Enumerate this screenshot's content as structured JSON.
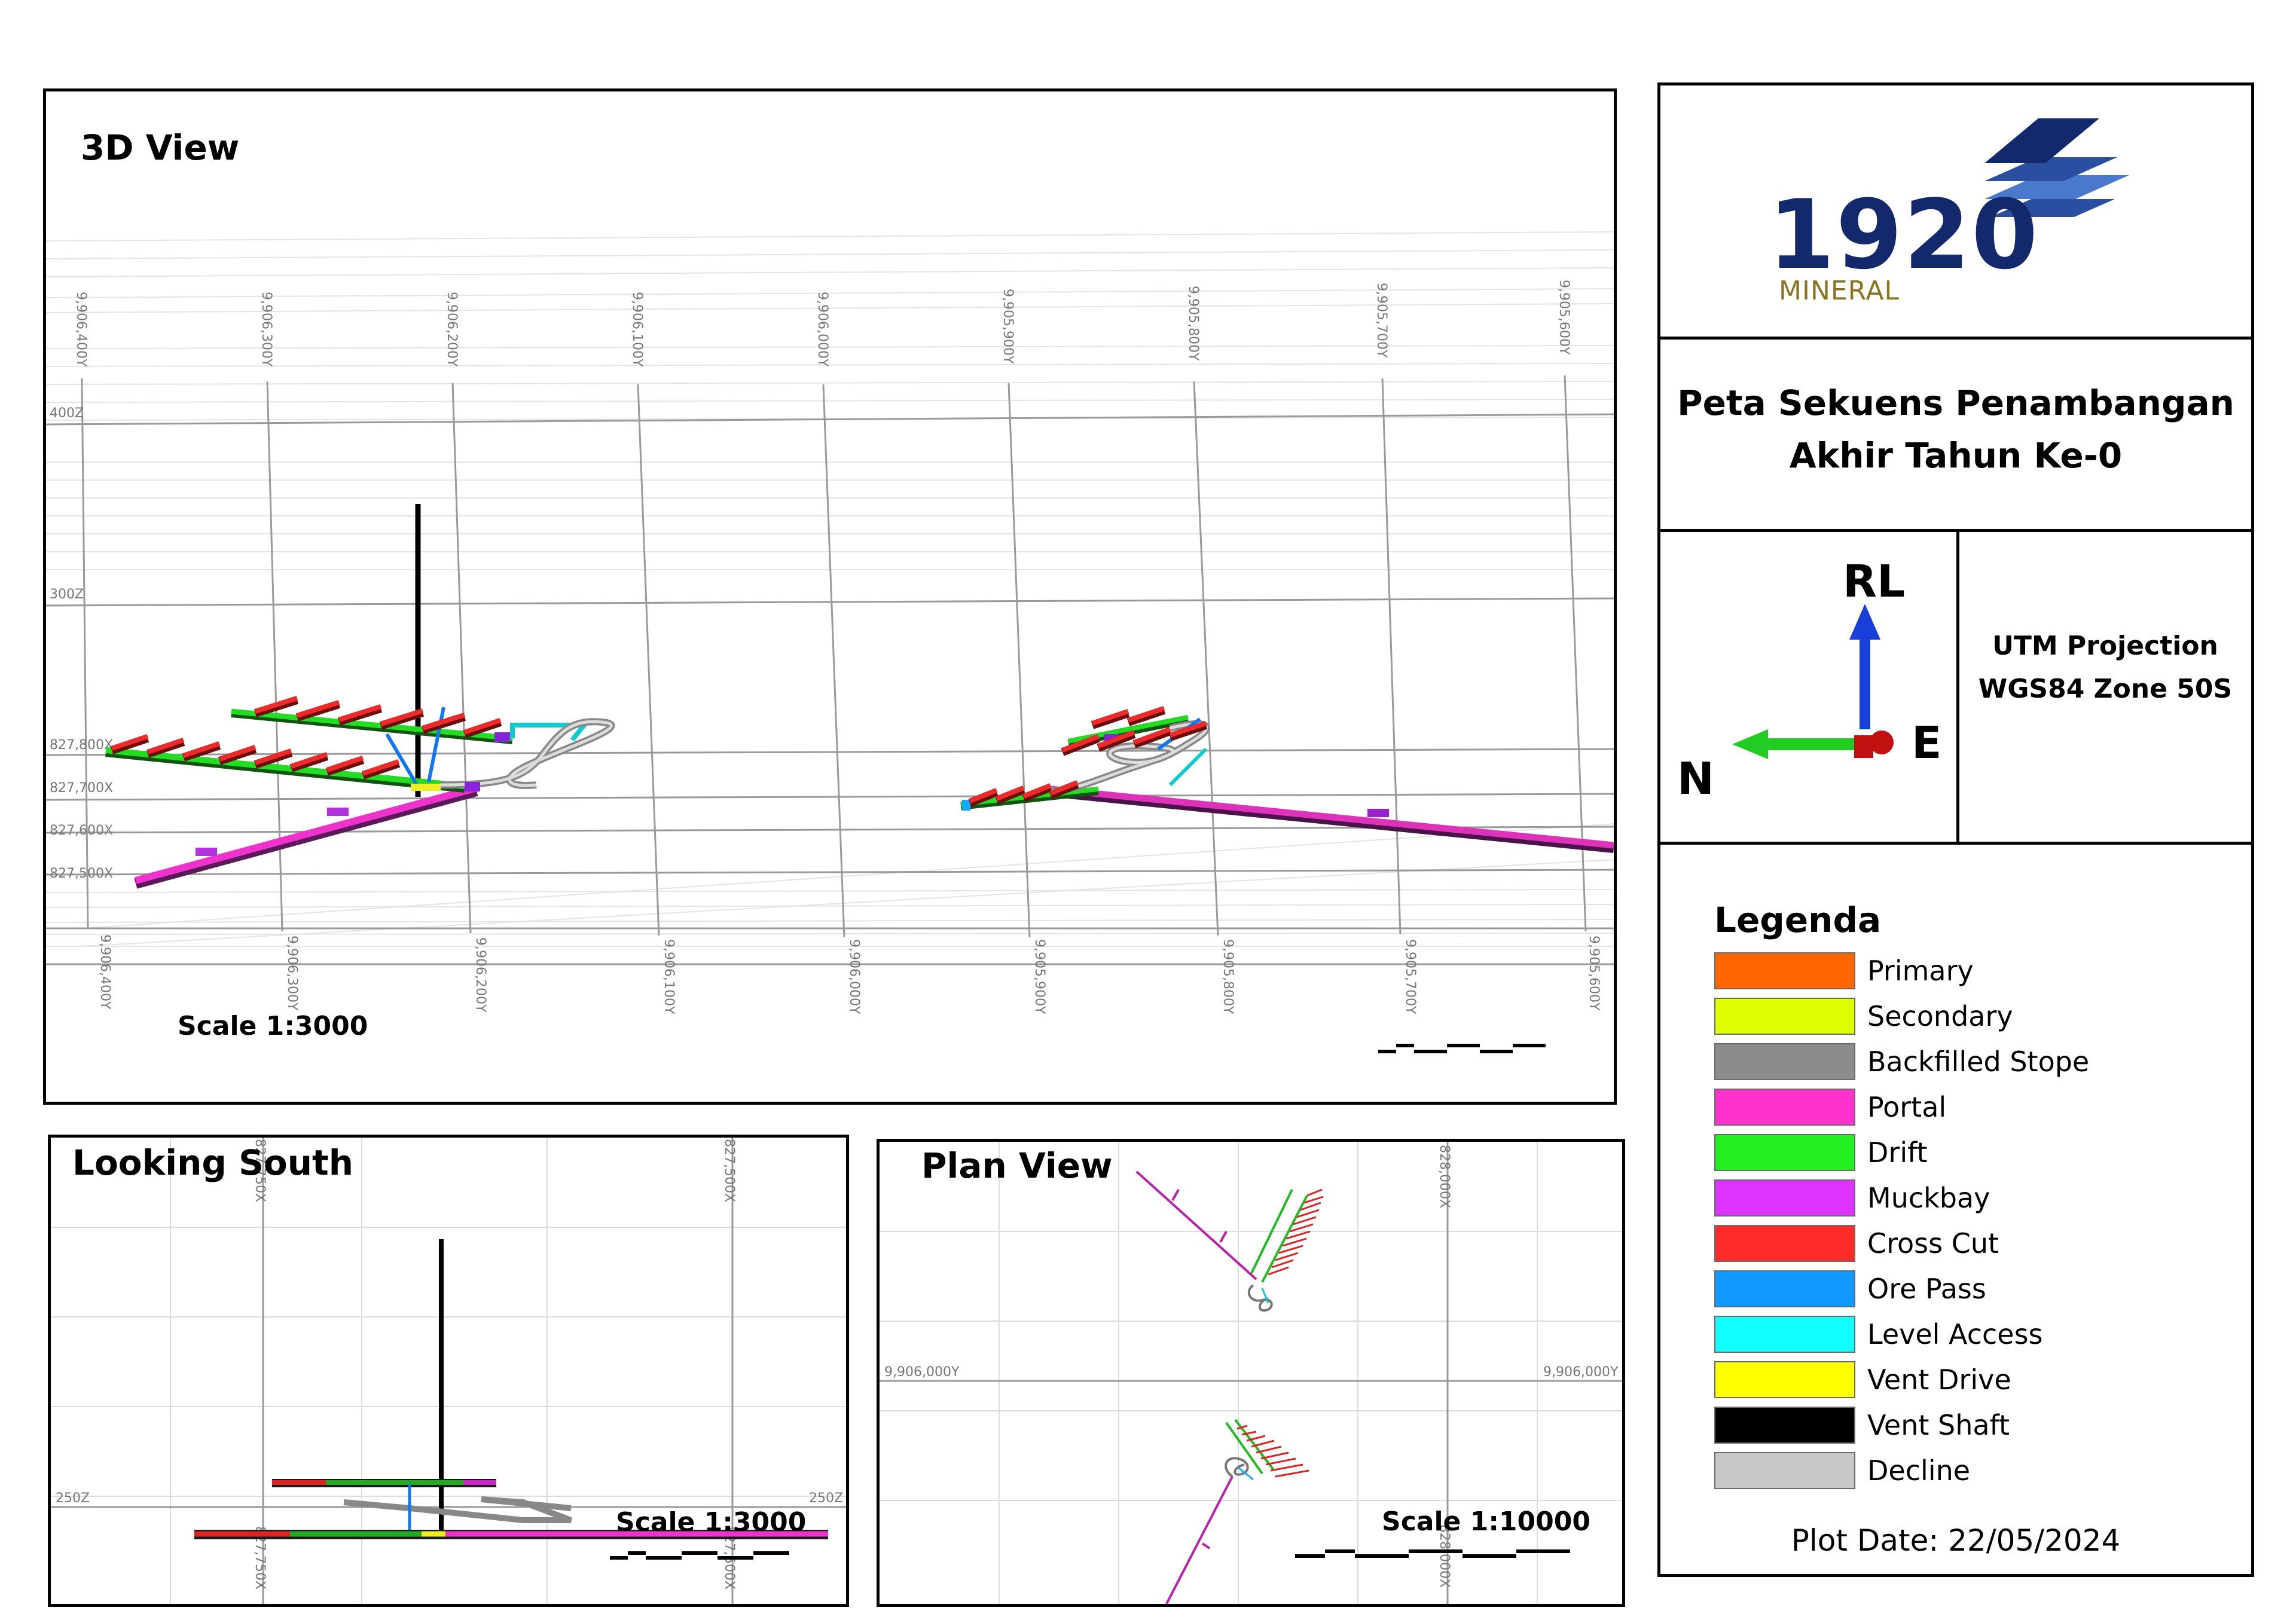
{
  "views": {
    "view3d": {
      "title": "3D View",
      "scale": "Scale 1:3000",
      "y_ticks_top": [
        "9,906,400Y",
        "9,906,300Y",
        "9,906,200Y",
        "9,906,100Y",
        "9,906,000Y",
        "9,905,900Y",
        "9,905,800Y",
        "9,905,700Y",
        "9,905,600Y"
      ],
      "y_ticks_bottom": [
        "9,906,400Y",
        "9,906,300Y",
        "9,906,200Y",
        "9,906,100Y",
        "9,906,000Y",
        "9,905,900Y",
        "9,905,800Y",
        "9,905,700Y",
        "9,905,600Y"
      ],
      "z_ticks": [
        "400Z",
        "300Z"
      ],
      "x_ticks": [
        "827,800X",
        "827,700X",
        "827,600X",
        "827,500X"
      ]
    },
    "looking_south": {
      "title": "Looking South",
      "scale": "Scale 1:3000",
      "x_ticks_top": [
        "827,750X",
        "827,500X"
      ],
      "x_ticks_bottom": [
        "827,750X",
        "827,500X"
      ],
      "z_left": "250Z",
      "z_right": "250Z"
    },
    "plan": {
      "title": "Plan View",
      "scale": "Scale 1:10000",
      "x_tick_top": "828,000X",
      "x_tick_bottom": "828,000X",
      "y_left": "9,906,000Y",
      "y_right": "9,906,000Y"
    }
  },
  "logo": {
    "digits": "1920",
    "word": "MINERAL"
  },
  "title_block": {
    "line1": "Peta Sekuens Penambangan",
    "line2": "Akhir Tahun Ke-0"
  },
  "orientation": {
    "up": "RL",
    "east": "E",
    "north": "N"
  },
  "projection": {
    "line1": "UTM Projection",
    "line2": "WGS84 Zone 50S"
  },
  "legend": {
    "title": "Legenda",
    "items": [
      {
        "label": "Primary",
        "color": "#ff6600"
      },
      {
        "label": "Secondary",
        "color": "#ddff00"
      },
      {
        "label": "Backfilled Stope",
        "color": "#8c8c8c"
      },
      {
        "label": "Portal",
        "color": "#ff33cc"
      },
      {
        "label": "Drift",
        "color": "#22ee22"
      },
      {
        "label": "Muckbay",
        "color": "#dd33ff"
      },
      {
        "label": "Cross Cut",
        "color": "#ff2a2a"
      },
      {
        "label": "Ore Pass",
        "color": "#1199ff"
      },
      {
        "label": "Level Access",
        "color": "#11ffff"
      },
      {
        "label": "Vent Drive",
        "color": "#ffff00"
      },
      {
        "label": "Vent Shaft",
        "color": "#000000"
      },
      {
        "label": "Decline",
        "color": "#c8c8c8"
      }
    ]
  },
  "plot_date": "Plot Date: 22/05/2024",
  "colors": {
    "drift": "#1faa1f",
    "cross_cut": "#dd2222",
    "portal": "#cc22aa",
    "decline": "#b0b0b0",
    "logo_dark": "#13296b",
    "logo_mid": "#2a4fa0",
    "logo_light": "#4a78cc",
    "logo_gold": "#8a7420"
  }
}
